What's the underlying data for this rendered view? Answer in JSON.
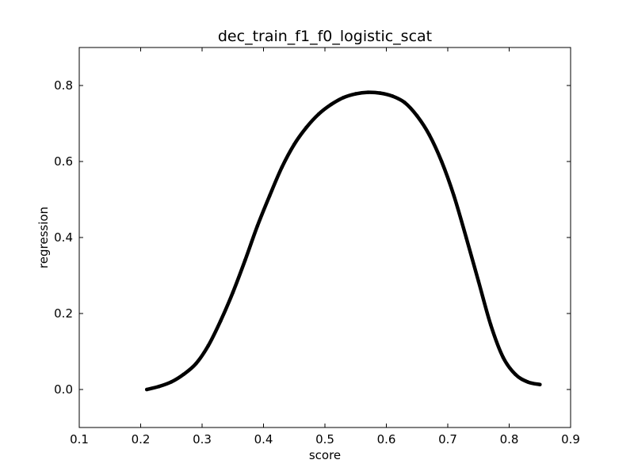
{
  "chart_data": {
    "type": "scatter",
    "title": "dec_train_f1_f0_logistic_scat",
    "xlabel": "score",
    "ylabel": "regression",
    "xlim": [
      0.1,
      0.9
    ],
    "ylim": [
      -0.1,
      0.9
    ],
    "xticks": [
      0.1,
      0.2,
      0.3,
      0.4,
      0.5,
      0.6,
      0.7,
      0.8,
      0.9
    ],
    "xtick_labels": [
      "0.1",
      "0.2",
      "0.3",
      "0.4",
      "0.5",
      "0.6",
      "0.7",
      "0.8",
      "0.9"
    ],
    "yticks": [
      0.0,
      0.2,
      0.4,
      0.6,
      0.8
    ],
    "ytick_labels": [
      "0.0",
      "0.2",
      "0.4",
      "0.6",
      "0.8"
    ],
    "grid": false,
    "series": [
      {
        "color": "#000000",
        "x": [
          0.21,
          0.23,
          0.25,
          0.27,
          0.29,
          0.31,
          0.33,
          0.35,
          0.37,
          0.39,
          0.41,
          0.43,
          0.45,
          0.47,
          0.49,
          0.51,
          0.53,
          0.55,
          0.57,
          0.59,
          0.61,
          0.63,
          0.65,
          0.67,
          0.69,
          0.71,
          0.73,
          0.75,
          0.77,
          0.79,
          0.81,
          0.83,
          0.85
        ],
        "y": [
          0.0,
          0.008,
          0.02,
          0.04,
          0.068,
          0.115,
          0.18,
          0.255,
          0.34,
          0.43,
          0.51,
          0.585,
          0.645,
          0.69,
          0.725,
          0.75,
          0.768,
          0.778,
          0.782,
          0.78,
          0.772,
          0.755,
          0.72,
          0.67,
          0.6,
          0.51,
          0.4,
          0.285,
          0.17,
          0.085,
          0.04,
          0.02,
          0.013
        ]
      }
    ]
  }
}
